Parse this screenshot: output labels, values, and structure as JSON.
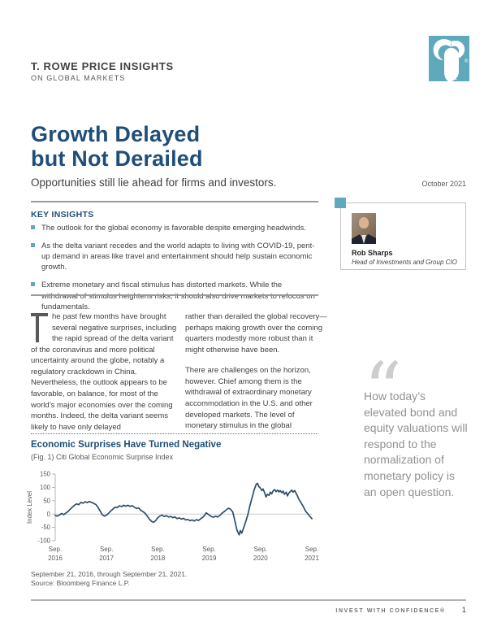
{
  "brand": {
    "eyebrow": "T. ROWE PRICE INSIGHTS",
    "eyebrow_sub": "ON GLOBAL MARKETS",
    "logo_color": "#5fa9bd",
    "logo_registered": "®"
  },
  "title": {
    "line1": "Growth Delayed",
    "line2": "but Not Derailed"
  },
  "subtitle": "Opportunities still lie ahead for firms and investors.",
  "pub_date": "October 2021",
  "key_insights": {
    "heading": "KEY INSIGHTS",
    "bullets": [
      "The outlook for the global economy is favorable despite emerging headwinds.",
      "As the delta variant recedes and the world adapts to living with COVID-19, pent-up demand in areas like travel and entertainment should help sustain economic growth.",
      "Extreme monetary and fiscal stimulus has distorted markets. While the withdrawal of stimulus heightens risks, it should also drive markets to refocus on fundamentals."
    ],
    "bullet_color": "#5fa9bd"
  },
  "author": {
    "name": "Rob Sharps",
    "role": "Head of Investments and Group CIO"
  },
  "body": {
    "dropcap": "T",
    "col1": "he past few months have brought several negative surprises, including the rapid spread of the delta variant of the coronavirus and more political uncertainty around the globe, notably a regulatory crackdown in China. Nevertheless, the outlook appears to be favorable, on balance, for most of the world’s major economies over the coming months. Indeed, the delta variant seems likely to have only delayed",
    "col2_p1": "rather than derailed the global recovery—perhaps making growth over the coming quarters modestly more robust than it might otherwise have been.",
    "col2_p2": "There are challenges on the horizon, however. Chief among them is the withdrawal of extraordinary monetary accommodation in the U.S. and other developed markets. The level of monetary stimulus in the global"
  },
  "quote": {
    "mark": "“",
    "text": "How today’s elevated bond and equity valuations will respond to the normalization of monetary policy is an open question."
  },
  "figure": {
    "heading": "Economic Surprises Have Turned Negative",
    "fig_label": "(Fig. 1) Citi Global Economic Surprise Index",
    "footnote_line1": "September 21, 2016, through September 21, 2021.",
    "footnote_line2": "Source: Bloomberg Finance L.P."
  },
  "chart_data": {
    "type": "line",
    "title": "Economic Surprises Have Turned Negative",
    "subtitle": "(Fig. 1) Citi Global Economic Surprise Index",
    "ylabel": "Index Level",
    "ylim": [
      -100,
      150
    ],
    "yticks": [
      150,
      100,
      50,
      0,
      -50,
      -100
    ],
    "gridline_at": 0,
    "x_unit": "months since Sep 2016",
    "xlim": [
      0,
      60
    ],
    "xticks": [
      {
        "t": 0,
        "line1": "Sep.",
        "line2": "2016"
      },
      {
        "t": 12,
        "line1": "Sep.",
        "line2": "2017"
      },
      {
        "t": 24,
        "line1": "Sep.",
        "line2": "2018"
      },
      {
        "t": 36,
        "line1": "Sep.",
        "line2": "2019"
      },
      {
        "t": 48,
        "line1": "Sep.",
        "line2": "2020"
      },
      {
        "t": 60,
        "line1": "Sep.",
        "line2": "2021"
      }
    ],
    "series": [
      {
        "name": "Citi Global Economic Surprise Index",
        "color": "#2d4d6f",
        "points": [
          [
            0,
            -5
          ],
          [
            0.5,
            -8
          ],
          [
            1,
            -3
          ],
          [
            1.5,
            2
          ],
          [
            2,
            -2
          ],
          [
            2.5,
            4
          ],
          [
            3,
            10
          ],
          [
            3.5,
            18
          ],
          [
            4,
            26
          ],
          [
            4.5,
            33
          ],
          [
            5,
            38
          ],
          [
            5.5,
            35
          ],
          [
            6,
            44
          ],
          [
            6.5,
            41
          ],
          [
            7,
            46
          ],
          [
            7.5,
            43
          ],
          [
            8,
            47
          ],
          [
            8.5,
            44
          ],
          [
            9,
            40
          ],
          [
            9.5,
            36
          ],
          [
            10,
            25
          ],
          [
            10.5,
            12
          ],
          [
            11,
            -2
          ],
          [
            11.5,
            -8
          ],
          [
            12,
            -4
          ],
          [
            12.5,
            3
          ],
          [
            13,
            12
          ],
          [
            13.5,
            19
          ],
          [
            14,
            26
          ],
          [
            14.5,
            24
          ],
          [
            15,
            31
          ],
          [
            15.5,
            28
          ],
          [
            16,
            33
          ],
          [
            16.5,
            30
          ],
          [
            17,
            33
          ],
          [
            17.5,
            29
          ],
          [
            18,
            31
          ],
          [
            18.5,
            26
          ],
          [
            19,
            21
          ],
          [
            19.5,
            23
          ],
          [
            20,
            14
          ],
          [
            20.5,
            9
          ],
          [
            21,
            3
          ],
          [
            21.5,
            -7
          ],
          [
            22,
            -19
          ],
          [
            22.5,
            -27
          ],
          [
            23,
            -31
          ],
          [
            23.5,
            -24
          ],
          [
            24,
            -13
          ],
          [
            24.5,
            -7
          ],
          [
            25,
            -4
          ],
          [
            25.5,
            -9
          ],
          [
            26,
            -6
          ],
          [
            26.5,
            -11
          ],
          [
            27,
            -9
          ],
          [
            27.5,
            -13
          ],
          [
            28,
            -11
          ],
          [
            28.5,
            -17
          ],
          [
            29,
            -14
          ],
          [
            29.5,
            -19
          ],
          [
            30,
            -16
          ],
          [
            30.5,
            -22
          ],
          [
            31,
            -20
          ],
          [
            31.5,
            -25
          ],
          [
            32,
            -22
          ],
          [
            32.5,
            -26
          ],
          [
            33,
            -21
          ],
          [
            33.5,
            -24
          ],
          [
            34,
            -18
          ],
          [
            34.5,
            -12
          ],
          [
            35,
            -4
          ],
          [
            35.3,
            5
          ],
          [
            35.6,
            1
          ],
          [
            36,
            -4
          ],
          [
            36.5,
            -9
          ],
          [
            37,
            -12
          ],
          [
            37.5,
            -8
          ],
          [
            38,
            -11
          ],
          [
            38.5,
            -5
          ],
          [
            39,
            3
          ],
          [
            39.5,
            9
          ],
          [
            40,
            16
          ],
          [
            40.5,
            22
          ],
          [
            41,
            18
          ],
          [
            41.5,
            8
          ],
          [
            42,
            -25
          ],
          [
            42.5,
            -60
          ],
          [
            43,
            -78
          ],
          [
            43.3,
            -62
          ],
          [
            43.6,
            -72
          ],
          [
            44,
            -55
          ],
          [
            44.5,
            -30
          ],
          [
            45,
            -5
          ],
          [
            45.5,
            30
          ],
          [
            46,
            60
          ],
          [
            46.5,
            90
          ],
          [
            47,
            112
          ],
          [
            47.3,
            115
          ],
          [
            47.6,
            103
          ],
          [
            48,
            97
          ],
          [
            48.3,
            88
          ],
          [
            48.6,
            94
          ],
          [
            49,
            78
          ],
          [
            49.3,
            64
          ],
          [
            49.6,
            74
          ],
          [
            50,
            70
          ],
          [
            50.3,
            82
          ],
          [
            50.6,
            76
          ],
          [
            51,
            88
          ],
          [
            51.3,
            92
          ],
          [
            51.6,
            84
          ],
          [
            52,
            90
          ],
          [
            52.3,
            83
          ],
          [
            52.6,
            88
          ],
          [
            53,
            80
          ],
          [
            53.3,
            86
          ],
          [
            53.6,
            74
          ],
          [
            54,
            82
          ],
          [
            54.3,
            68
          ],
          [
            54.6,
            78
          ],
          [
            55,
            85
          ],
          [
            55.3,
            90
          ],
          [
            55.6,
            82
          ],
          [
            56,
            88
          ],
          [
            56.5,
            72
          ],
          [
            57,
            55
          ],
          [
            57.5,
            42
          ],
          [
            58,
            28
          ],
          [
            58.5,
            12
          ],
          [
            59,
            2
          ],
          [
            59.5,
            -8
          ],
          [
            60,
            -17
          ]
        ]
      }
    ]
  },
  "footer": {
    "tagline": "INVEST WITH CONFIDENCE®",
    "page_number": "1"
  }
}
